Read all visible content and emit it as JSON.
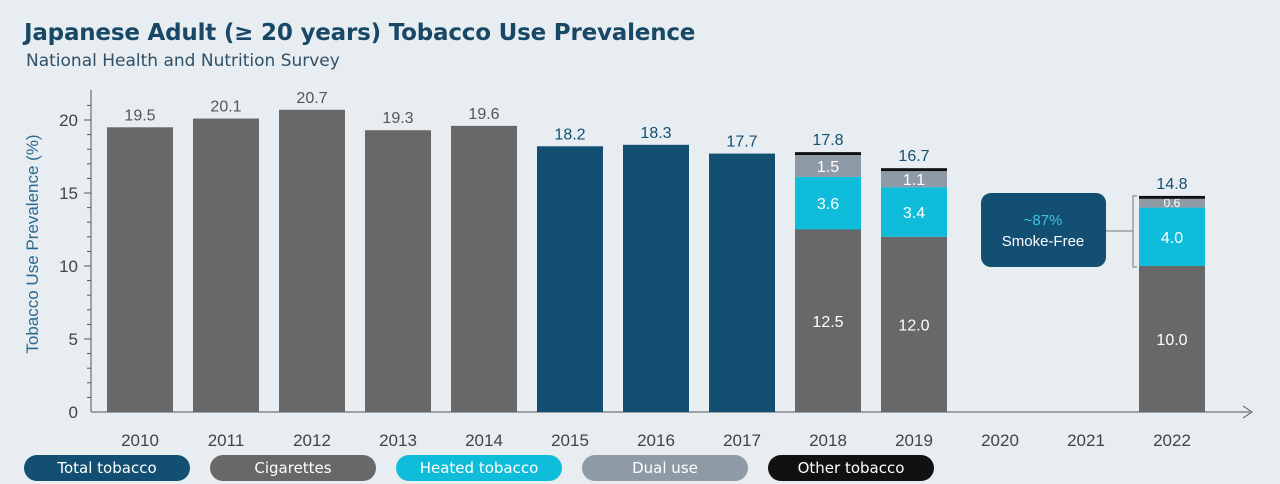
{
  "chart_data": {
    "type": "bar",
    "title": "Japanese Adult (≥ 20 years) Tobacco Use Prevalence",
    "subtitle": "National Health and Nutrition Survey",
    "ylabel": "Tobacco Use Prevalence (%)",
    "xlabel": "",
    "ylim": [
      0,
      22
    ],
    "yticks": [
      0,
      5,
      10,
      15,
      20
    ],
    "grid": false,
    "legend_position": "bottom",
    "categories": [
      "2010",
      "2011",
      "2012",
      "2013",
      "2014",
      "2015",
      "2016",
      "2017",
      "2018",
      "2019",
      "2020",
      "2021",
      "2022"
    ],
    "total_labels": [
      "19.5",
      "20.1",
      "20.7",
      "19.3",
      "19.6",
      "18.2",
      "18.3",
      "17.7",
      "17.8",
      "16.7",
      "",
      "",
      "14.8"
    ],
    "series": [
      {
        "name": "Total tobacco",
        "color": "#124f72",
        "values": [
          null,
          null,
          null,
          null,
          null,
          18.2,
          18.3,
          17.7,
          null,
          null,
          null,
          null,
          null
        ]
      },
      {
        "name": "Cigarettes",
        "color": "#686868",
        "values": [
          19.5,
          20.1,
          20.7,
          19.3,
          19.6,
          null,
          null,
          null,
          12.5,
          12.0,
          null,
          null,
          10.0
        ],
        "labels": [
          "",
          "",
          "",
          "",
          "",
          "",
          "",
          "",
          "12.5",
          "12.0",
          "",
          "",
          "10.0"
        ]
      },
      {
        "name": "Heated tobacco",
        "color": "#0fbcd9",
        "values": [
          null,
          null,
          null,
          null,
          null,
          null,
          null,
          null,
          3.6,
          3.4,
          null,
          null,
          4.0
        ],
        "labels": [
          "",
          "",
          "",
          "",
          "",
          "",
          "",
          "",
          "3.6",
          "3.4",
          "",
          "",
          "4.0"
        ]
      },
      {
        "name": "Dual use",
        "color": "#8e9aa5",
        "values": [
          null,
          null,
          null,
          null,
          null,
          null,
          null,
          null,
          1.5,
          1.1,
          null,
          null,
          0.6
        ],
        "labels": [
          "",
          "",
          "",
          "",
          "",
          "",
          "",
          "",
          "1.5",
          "1.1",
          "",
          "",
          "0.6"
        ]
      },
      {
        "name": "Other tobacco",
        "color": "#111111",
        "values": [
          null,
          null,
          null,
          null,
          null,
          null,
          null,
          null,
          0.2,
          0.2,
          null,
          null,
          0.2
        ]
      }
    ],
    "annotation": {
      "pct": "~87%",
      "text": "Smoke-Free",
      "color": "#124f72",
      "pct_color": "#3bc4e0"
    }
  }
}
